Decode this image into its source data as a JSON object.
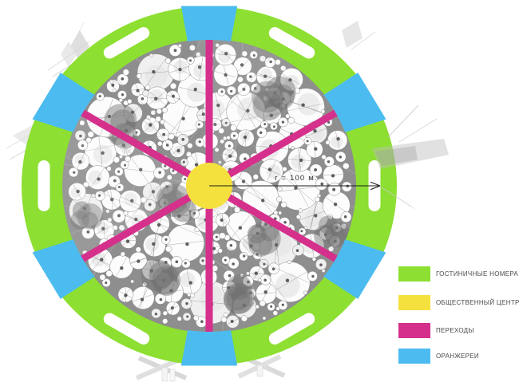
{
  "colors": {
    "hotel_rooms": "#8DDF31",
    "public_center": "#F5E13E",
    "passages": "#D5308C",
    "greenhouses": "#4CBCF0",
    "canopy_background": "#8E8E8E",
    "canopy_circle": "#FCFCFC",
    "legend_text": "#4A4A4A",
    "arrow": "#1C1C1C",
    "shadow": "#D6D6D6"
  },
  "diagram": {
    "radius_label": "r = 100 м."
  },
  "legend": {
    "items": [
      {
        "id": "hotel-rooms",
        "label": "ГОСТИНИЧНЫЕ НОМЕРА",
        "color": "hotel_rooms"
      },
      {
        "id": "public-center",
        "label": "ОБЩЕСТВЕННЫЙ ЦЕНТР",
        "color": "public_center"
      },
      {
        "id": "passages",
        "label": "ПЕРЕХОДЫ",
        "color": "passages"
      },
      {
        "id": "greenhouses",
        "label": "ОРАНЖЕРЕИ",
        "color": "greenhouses"
      }
    ]
  }
}
